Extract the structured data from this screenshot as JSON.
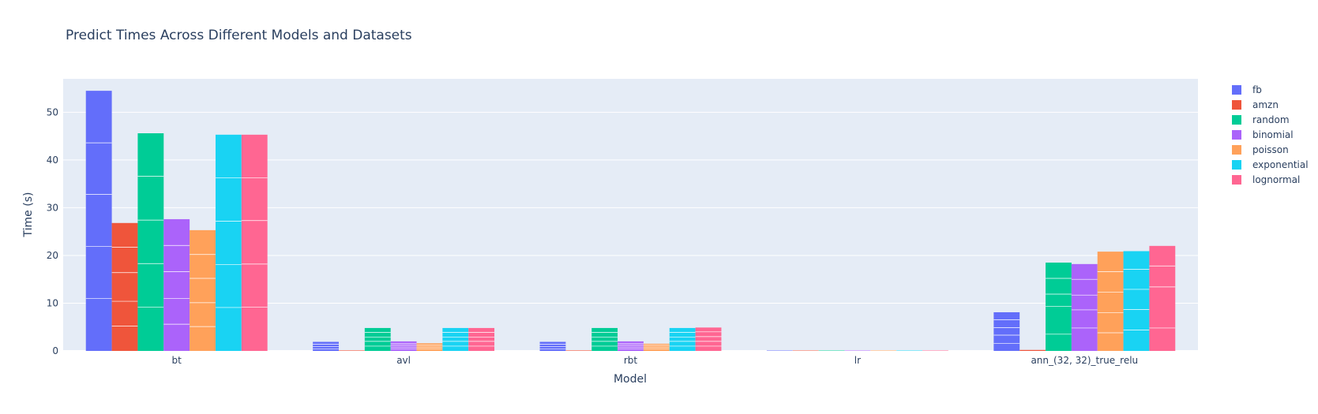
{
  "chart_data": {
    "type": "bar",
    "barmode": "group",
    "title": "Predict Times Across Different Models and Datasets",
    "xlabel": "Model",
    "ylabel": "Time (s)",
    "categories": [
      "bt",
      "avl",
      "rbt",
      "lr",
      "ann_(32, 32)_true_relu"
    ],
    "ylim": [
      0,
      57
    ],
    "yticks": [
      0,
      10,
      20,
      30,
      40,
      50
    ],
    "grid": true,
    "legend_position": "right",
    "background": "#e5ecf6",
    "series": [
      {
        "name": "fb",
        "color": "#636efa",
        "values": [
          54.5,
          1.9,
          1.9,
          0.05,
          8.1
        ],
        "segments": [
          [
            11.0,
            10.9,
            10.9,
            10.8,
            10.9
          ],
          [
            0.4,
            0.5,
            0.5,
            0.5
          ],
          [
            0.4,
            0.5,
            0.5,
            0.5
          ],
          [
            0.05
          ],
          [
            1.6,
            1.7,
            1.6,
            1.6,
            1.6
          ]
        ]
      },
      {
        "name": "amzn",
        "color": "#ef553b",
        "values": [
          26.8,
          0.1,
          0.1,
          0.03,
          0.2
        ],
        "segments": [
          [
            5.2,
            5.2,
            6.0,
            5.3,
            5.1
          ],
          [
            0.1
          ],
          [
            0.1
          ],
          [
            0.03
          ],
          [
            0.2
          ]
        ]
      },
      {
        "name": "random",
        "color": "#00cc96",
        "values": [
          45.6,
          4.8,
          4.8,
          0.05,
          18.5
        ],
        "segments": [
          [
            9.2,
            9.1,
            9.1,
            9.2,
            9.0
          ],
          [
            1.0,
            1.0,
            0.9,
            1.0,
            0.9
          ],
          [
            1.0,
            1.0,
            0.9,
            1.0,
            0.9
          ],
          [
            0.05
          ],
          [
            3.5,
            5.8,
            2.6,
            3.3,
            3.3
          ]
        ]
      },
      {
        "name": "binomial",
        "color": "#ab63fa",
        "values": [
          27.6,
          2.0,
          2.0,
          0.05,
          18.2
        ],
        "segments": [
          [
            5.6,
            5.4,
            5.6,
            5.5,
            5.5
          ],
          [
            0.4,
            0.4,
            0.4,
            0.4,
            0.4
          ],
          [
            0.4,
            0.4,
            0.4,
            0.4,
            0.4
          ],
          [
            0.05
          ],
          [
            4.8,
            3.8,
            3.1,
            3.3,
            3.2
          ]
        ]
      },
      {
        "name": "poisson",
        "color": "#ffa15a",
        "values": [
          25.3,
          1.6,
          1.5,
          0.05,
          20.8
        ],
        "segments": [
          [
            5.1,
            5.0,
            5.1,
            5.0,
            5.1
          ],
          [
            0.4,
            0.4,
            0.4,
            0.4
          ],
          [
            0.4,
            0.4,
            0.4,
            0.3
          ],
          [
            0.05
          ],
          [
            3.8,
            4.2,
            4.3,
            4.3,
            4.2
          ]
        ]
      },
      {
        "name": "exponential",
        "color": "#19d3f3",
        "values": [
          45.3,
          4.8,
          4.8,
          0.05,
          20.9
        ],
        "segments": [
          [
            9.1,
            9.0,
            9.1,
            9.1,
            9.0
          ],
          [
            1.0,
            1.0,
            0.9,
            1.0,
            0.9
          ],
          [
            1.0,
            1.0,
            0.9,
            1.0,
            0.9
          ],
          [
            0.05
          ],
          [
            4.4,
            4.3,
            4.2,
            4.2,
            3.8
          ]
        ]
      },
      {
        "name": "lognormal",
        "color": "#ff6692",
        "values": [
          45.3,
          4.8,
          4.9,
          0.05,
          22.0
        ],
        "segments": [
          [
            9.2,
            9.0,
            9.1,
            9.0,
            9.0
          ],
          [
            1.0,
            1.0,
            0.9,
            1.0,
            0.9
          ],
          [
            1.0,
            1.0,
            1.0,
            1.0,
            0.9
          ],
          [
            0.05
          ],
          [
            4.8,
            8.6,
            4.4,
            4.2
          ]
        ]
      }
    ]
  }
}
